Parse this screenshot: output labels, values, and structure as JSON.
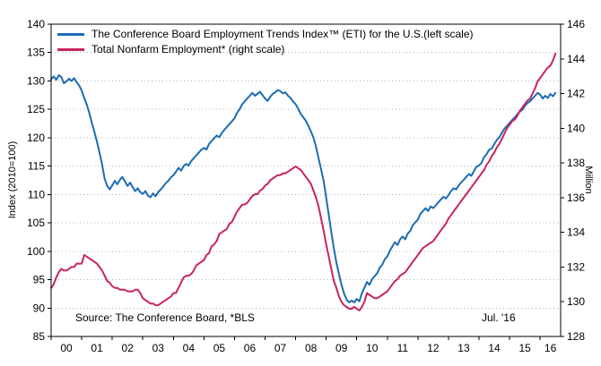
{
  "page": {
    "background": "#ffffff"
  },
  "chart_data": {
    "type": "line",
    "title": "",
    "frequency": "monthly",
    "x_start": 2000,
    "x_step_years": 0.0833333,
    "x_range": [
      2000,
      2016.67
    ],
    "x_tick_labels": [
      "00",
      "01",
      "02",
      "03",
      "04",
      "05",
      "06",
      "07",
      "08",
      "09",
      "10",
      "11",
      "12",
      "13",
      "14",
      "15",
      "16"
    ],
    "left_axis": {
      "label": "Index (2010=100)",
      "range": [
        85,
        140
      ],
      "ticks": [
        85,
        90,
        95,
        100,
        105,
        110,
        115,
        120,
        125,
        130,
        135,
        140
      ]
    },
    "right_axis": {
      "label": "Million",
      "range": [
        128,
        146
      ],
      "ticks": [
        128,
        130,
        132,
        134,
        136,
        138,
        140,
        142,
        144,
        146
      ]
    },
    "grid": "horizontal-dotted",
    "legend_position": "top-left-inside",
    "source_note": "Source: The Conference Board, *BLS",
    "annotation": "Jul. '16",
    "series": [
      {
        "name": "The Conference Board Employment Trends Index™ (ETI) for the U.S.(left scale)",
        "axis": "left",
        "color": "#1b6cb5",
        "values": [
          130.3,
          130.8,
          130.2,
          131.0,
          130.7,
          129.6,
          129.9,
          130.4,
          130.0,
          130.5,
          129.8,
          129.2,
          128.3,
          127.0,
          125.8,
          124.3,
          122.6,
          121.0,
          119.3,
          117.4,
          115.3,
          112.8,
          111.5,
          110.9,
          111.6,
          112.4,
          111.8,
          112.6,
          113.1,
          112.3,
          111.5,
          112.1,
          111.3,
          110.6,
          111.1,
          110.4,
          110.1,
          110.6,
          109.8,
          109.5,
          110.2,
          109.7,
          110.4,
          110.9,
          111.4,
          112.0,
          112.4,
          113.0,
          113.4,
          114.0,
          114.7,
          114.2,
          115.0,
          115.4,
          115.1,
          115.9,
          116.4,
          116.9,
          117.4,
          117.9,
          118.2,
          117.9,
          118.9,
          119.4,
          119.9,
          120.4,
          120.1,
          120.8,
          121.4,
          121.9,
          122.4,
          122.9,
          123.4,
          124.4,
          125.0,
          125.9,
          126.4,
          126.9,
          127.4,
          127.9,
          127.4,
          127.7,
          128.1,
          127.5,
          126.9,
          126.5,
          127.2,
          127.7,
          128.0,
          128.4,
          128.2,
          127.8,
          128.0,
          127.4,
          127.0,
          126.4,
          125.9,
          125.1,
          124.2,
          123.6,
          123.0,
          122.1,
          121.1,
          120.0,
          118.4,
          116.4,
          114.4,
          112.4,
          109.4,
          106.4,
          103.4,
          100.5,
          98.0,
          96.0,
          94.1,
          92.6,
          91.5,
          91.0,
          91.3,
          91.0,
          91.6,
          91.2,
          92.6,
          93.6,
          94.6,
          94.1,
          95.1,
          95.6,
          96.1,
          97.1,
          97.6,
          98.6,
          99.1,
          100.1,
          100.9,
          101.6,
          101.1,
          102.1,
          102.6,
          102.1,
          103.1,
          103.6,
          104.6,
          105.1,
          105.6,
          106.6,
          107.1,
          107.6,
          107.1,
          107.9,
          107.6,
          108.1,
          108.6,
          109.1,
          109.6,
          109.3,
          109.9,
          110.6,
          111.1,
          110.9,
          111.6,
          112.1,
          112.6,
          113.1,
          113.6,
          113.3,
          114.1,
          114.9,
          115.1,
          115.6,
          116.6,
          117.1,
          117.9,
          118.1,
          118.9,
          119.6,
          120.1,
          120.9,
          121.6,
          122.1,
          122.6,
          123.1,
          123.6,
          124.1,
          124.6,
          124.9,
          125.6,
          126.1,
          126.4,
          126.9,
          127.4,
          127.9,
          127.6,
          126.9,
          127.4,
          127.0,
          127.7,
          127.3,
          127.9
        ]
      },
      {
        "name": "Total Nonfarm Employment* (right scale)",
        "axis": "right",
        "color": "#c9235f",
        "values": [
          130.8,
          131.0,
          131.4,
          131.7,
          131.9,
          131.8,
          131.8,
          131.9,
          132.0,
          132.0,
          132.2,
          132.2,
          132.2,
          132.7,
          132.6,
          132.5,
          132.4,
          132.3,
          132.2,
          132.0,
          131.8,
          131.5,
          131.2,
          131.1,
          130.9,
          130.8,
          130.8,
          130.7,
          130.7,
          130.7,
          130.6,
          130.6,
          130.6,
          130.7,
          130.7,
          130.5,
          130.2,
          130.1,
          130.0,
          129.9,
          129.9,
          129.8,
          129.8,
          129.9,
          130.0,
          130.1,
          130.2,
          130.3,
          130.5,
          130.5,
          130.8,
          131.1,
          131.4,
          131.5,
          131.5,
          131.6,
          131.8,
          132.1,
          132.2,
          132.3,
          132.4,
          132.7,
          132.8,
          133.2,
          133.3,
          133.5,
          133.9,
          134.0,
          134.1,
          134.2,
          134.5,
          134.6,
          134.9,
          135.2,
          135.4,
          135.6,
          135.6,
          135.7,
          135.9,
          136.1,
          136.2,
          136.2,
          136.4,
          136.5,
          136.7,
          136.8,
          137.0,
          137.1,
          137.2,
          137.3,
          137.3,
          137.4,
          137.4,
          137.5,
          137.6,
          137.7,
          137.8,
          137.7,
          137.6,
          137.4,
          137.2,
          137.0,
          136.8,
          136.4,
          136.0,
          135.5,
          134.8,
          134.1,
          133.3,
          132.6,
          131.9,
          131.2,
          130.8,
          130.3,
          130.0,
          129.8,
          129.7,
          129.6,
          129.6,
          129.7,
          129.6,
          129.5,
          129.7,
          130.0,
          130.5,
          130.4,
          130.3,
          130.2,
          130.2,
          130.3,
          130.4,
          130.5,
          130.6,
          130.8,
          131.0,
          131.2,
          131.3,
          131.5,
          131.6,
          131.7,
          131.9,
          132.1,
          132.3,
          132.5,
          132.7,
          132.9,
          133.1,
          133.2,
          133.3,
          133.4,
          133.5,
          133.7,
          133.9,
          134.1,
          134.3,
          134.5,
          134.8,
          135.0,
          135.2,
          135.4,
          135.6,
          135.8,
          136.0,
          136.2,
          136.4,
          136.6,
          136.8,
          137.0,
          137.2,
          137.4,
          137.6,
          137.9,
          138.1,
          138.4,
          138.6,
          138.9,
          139.1,
          139.4,
          139.7,
          140.0,
          140.2,
          140.4,
          140.5,
          140.7,
          141.0,
          141.2,
          141.4,
          141.6,
          141.7,
          142.0,
          142.3,
          142.7,
          142.9,
          143.1,
          143.3,
          143.5,
          143.6,
          143.9,
          144.3
        ]
      }
    ]
  }
}
